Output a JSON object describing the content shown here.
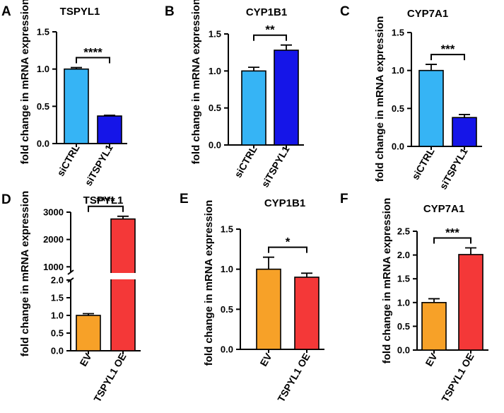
{
  "chart_data": [
    {
      "panel": "A",
      "type": "bar",
      "title": "TSPYL1",
      "ylabel": "fold change in mRNA expression",
      "categories": [
        "siCTRL",
        "siTSPYL1"
      ],
      "values": [
        1.0,
        0.37
      ],
      "errors": [
        0.02,
        0.01
      ],
      "colors": [
        "#36B4F5",
        "#1515E8"
      ],
      "ylim": [
        0,
        1.5
      ],
      "yticks": [
        "0.0",
        "0.5",
        "1.0",
        "1.5"
      ],
      "significance": "****"
    },
    {
      "panel": "B",
      "type": "bar",
      "title": "CYP1B1",
      "ylabel": "fold change in mRNA expression",
      "categories": [
        "siCTRL",
        "siTSPYL1"
      ],
      "values": [
        1.0,
        1.28
      ],
      "errors": [
        0.05,
        0.07
      ],
      "colors": [
        "#36B4F5",
        "#1515E8"
      ],
      "ylim": [
        0,
        1.5
      ],
      "yticks": [
        "0.0",
        "0.5",
        "1.0",
        "1.5"
      ],
      "significance": "**"
    },
    {
      "panel": "C",
      "type": "bar",
      "title": "CYP7A1",
      "ylabel": "fold change in mRNA expression",
      "categories": [
        "siCTRL",
        "siTSPYL1"
      ],
      "values": [
        1.0,
        0.38
      ],
      "errors": [
        0.08,
        0.04
      ],
      "colors": [
        "#36B4F5",
        "#1515E8"
      ],
      "ylim": [
        0,
        1.5
      ],
      "yticks": [
        "0.0",
        "0.5",
        "1.0",
        "1.5"
      ],
      "significance": "***"
    },
    {
      "panel": "D",
      "type": "bar",
      "title": "TSPYL1",
      "ylabel": "fold change in mRNA expression",
      "categories": [
        "EV",
        "TSPYL1 OE"
      ],
      "values": [
        1.0,
        2750
      ],
      "errors": [
        0.05,
        100
      ],
      "colors": [
        "#F7A128",
        "#F43838"
      ],
      "ylim": [
        0,
        3000
      ],
      "axis_break": [
        2.0,
        800
      ],
      "yticks": [
        "0.0",
        "0.5",
        "1.0",
        "1.5",
        "2.0",
        "1000",
        "2000",
        "3000"
      ],
      "significance": "****"
    },
    {
      "panel": "E",
      "type": "bar",
      "title": "CYP1B1",
      "ylabel": "fold change in mRNA expression",
      "categories": [
        "EV",
        "TSPYL1 OE"
      ],
      "values": [
        1.0,
        0.9
      ],
      "errors": [
        0.15,
        0.05
      ],
      "colors": [
        "#F7A128",
        "#F43838"
      ],
      "ylim": [
        0,
        1.5
      ],
      "yticks": [
        "0.0",
        "0.5",
        "1.0",
        "1.5"
      ],
      "significance": "*"
    },
    {
      "panel": "F",
      "type": "bar",
      "title": "CYP7A1",
      "ylabel": "fold change in mRNA expression",
      "categories": [
        "EV",
        "TSPYL1 OE"
      ],
      "values": [
        1.0,
        2.01
      ],
      "errors": [
        0.08,
        0.14
      ],
      "colors": [
        "#F7A128",
        "#F43838"
      ],
      "ylim": [
        0,
        2.5
      ],
      "yticks": [
        "0.0",
        "0.5",
        "1.0",
        "1.5",
        "2.0",
        "2.5"
      ],
      "significance": "***"
    }
  ]
}
